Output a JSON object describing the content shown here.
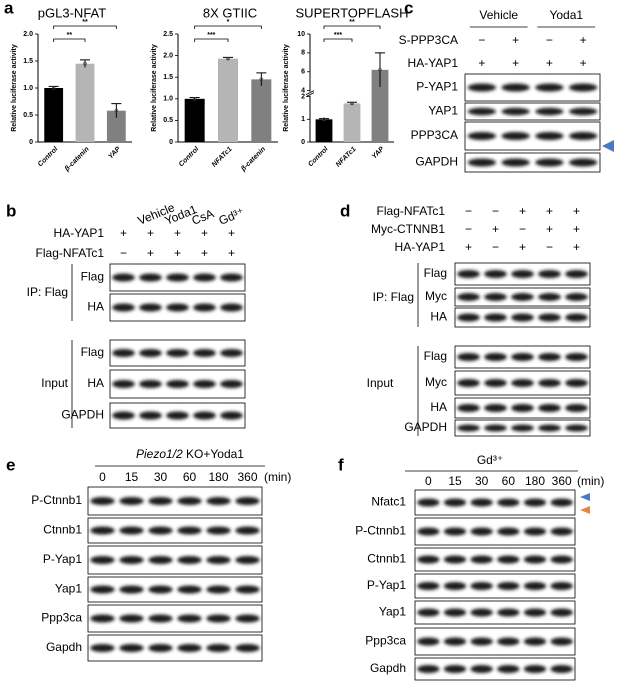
{
  "panel_labels": [
    "a",
    "b",
    "c",
    "d",
    "e",
    "f"
  ],
  "chart_data": [
    {
      "type": "bar",
      "title": "pGL3-NFAT",
      "y_label": "Relative luciferase activity",
      "categories": [
        "Control",
        "β-catenin",
        "YAP"
      ],
      "values": [
        1.0,
        1.45,
        0.58
      ],
      "errors": [
        0.03,
        0.07,
        0.13
      ],
      "colors": [
        "#000000",
        "#b5b5b5",
        "#808080"
      ],
      "ylim": [
        0,
        2
      ],
      "yticks": [
        0,
        0.5,
        {
          "value": 1,
          "label": "1.0"
        },
        1.5,
        {
          "value": 2,
          "label": "2.0"
        }
      ],
      "annotations": [
        {
          "text": "**",
          "between": [
            "Control",
            "β-catenin"
          ]
        },
        {
          "text": "**",
          "between": [
            "Control",
            "YAP"
          ]
        }
      ]
    },
    {
      "type": "bar",
      "title": "8X GTIIC",
      "y_label": "Relative luciferase activity",
      "categories": [
        "Control",
        "NFATc1",
        "β-catenin"
      ],
      "values": [
        1.0,
        1.93,
        1.45
      ],
      "errors": [
        0.03,
        0.03,
        0.15
      ],
      "colors": [
        "#000000",
        "#b5b5b5",
        "#808080"
      ],
      "ylim": [
        0,
        2.5
      ],
      "yticks": [
        0,
        0.5,
        {
          "value": 1,
          "label": "1.0"
        },
        1.5,
        {
          "value": 2,
          "label": "2.0"
        },
        2.5
      ],
      "annotations": [
        {
          "text": "***",
          "between": [
            "Control",
            "NFATc1"
          ]
        },
        {
          "text": "*",
          "between": [
            "Control",
            "β-catenin"
          ]
        }
      ]
    },
    {
      "type": "bar",
      "title": "SUPERTOPFLASH",
      "y_label": "Relative luciferase activity",
      "categories": [
        "Control",
        "NFATc1",
        "YAP"
      ],
      "values": [
        1.0,
        1.7,
        6.2
      ],
      "errors": [
        0.03,
        0.05,
        1.8
      ],
      "colors": [
        "#000000",
        "#b5b5b5",
        "#808080"
      ],
      "ylim": [
        0,
        10
      ],
      "axis_break": [
        2,
        4
      ],
      "yticks": [
        0,
        1,
        2,
        4,
        6,
        8,
        10
      ],
      "annotations": [
        {
          "text": "***",
          "between": [
            "Control",
            "NFATc1"
          ]
        },
        {
          "text": "**",
          "between": [
            "Control",
            "YAP"
          ]
        }
      ]
    }
  ],
  "panel_b": {
    "conditions": [
      "Vehicle",
      "Yoda1",
      "CsA",
      "Gd³⁺"
    ],
    "treatments": [
      {
        "name": "HA-YAP1",
        "signs": [
          "+",
          "+",
          "+",
          "+",
          "+"
        ]
      },
      {
        "name": "Flag-NFATc1",
        "signs": [
          "−",
          "+",
          "+",
          "+",
          "+"
        ]
      }
    ],
    "ip_label": "IP: Flag",
    "ip_blots": [
      "Flag",
      "HA"
    ],
    "input_label": "Input",
    "input_blots": [
      "Flag",
      "HA",
      "GAPDH"
    ]
  },
  "panel_c": {
    "groups": [
      "Vehicle",
      "Yoda1"
    ],
    "treatments": [
      {
        "name": "S-PPP3CA",
        "signs": [
          "−",
          "+",
          "−",
          "+"
        ]
      },
      {
        "name": "HA-YAP1",
        "signs": [
          "+",
          "+",
          "+",
          "+"
        ]
      }
    ],
    "blots": [
      "P-YAP1",
      "YAP1",
      "PPP3CA",
      "GAPDH"
    ]
  },
  "panel_d": {
    "treatments": [
      {
        "name": "Flag-NFATc1",
        "signs": [
          "−",
          "−",
          "+",
          "+",
          "+"
        ]
      },
      {
        "name": "Myc-CTNNB1",
        "signs": [
          "−",
          "+",
          "−",
          "+",
          "+"
        ]
      },
      {
        "name": "HA-YAP1",
        "signs": [
          "+",
          "−",
          "+",
          "−",
          "+"
        ]
      }
    ],
    "ip_label": "IP: Flag",
    "ip_blots": [
      "Flag",
      "Myc",
      "HA"
    ],
    "input_label": "Input",
    "input_blots": [
      "Flag",
      "Myc",
      "HA",
      "GAPDH"
    ]
  },
  "panel_e": {
    "title_italic": "Piezo1/2",
    "title_rest": " KO+Yoda1",
    "times": [
      "0",
      "15",
      "30",
      "60",
      "180",
      "360"
    ],
    "time_unit": "(min)",
    "blots": [
      "P-Ctnnb1",
      "Ctnnb1",
      "P-Yap1",
      "Yap1",
      "Ppp3ca",
      "Gapdh"
    ]
  },
  "panel_f": {
    "title": "Gd³⁺",
    "times": [
      "0",
      "15",
      "30",
      "60",
      "180",
      "360"
    ],
    "time_unit": "(min)",
    "blots": [
      "Nfatc1",
      "P-Ctnnb1",
      "Ctnnb1",
      "P-Yap1",
      "Yap1",
      "Ppp3ca",
      "Gapdh"
    ]
  }
}
